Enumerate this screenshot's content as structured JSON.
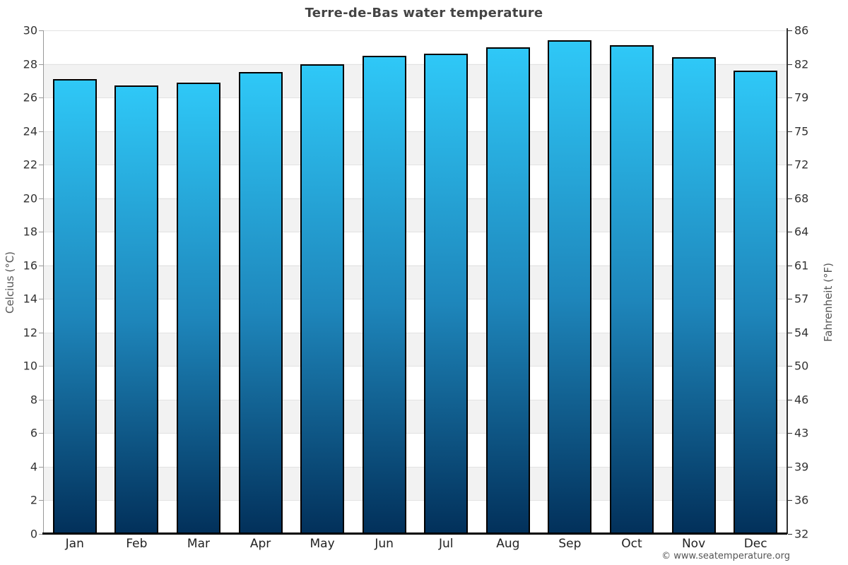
{
  "chart_data": {
    "type": "bar",
    "title": "Terre-de-Bas water temperature",
    "categories": [
      "Jan",
      "Feb",
      "Mar",
      "Apr",
      "May",
      "Jun",
      "Jul",
      "Aug",
      "Sep",
      "Oct",
      "Nov",
      "Dec"
    ],
    "values": [
      27.1,
      26.7,
      26.9,
      27.5,
      28.0,
      28.5,
      28.6,
      29.0,
      29.4,
      29.1,
      28.4,
      27.6
    ],
    "unit": "°C",
    "ylabel_left": "Celcius (°C)",
    "ylabel_right": "Fahrenheit (°F)",
    "ylim": [
      0,
      30
    ],
    "yticks_celsius": [
      30,
      28,
      26,
      24,
      22,
      20,
      18,
      16,
      14,
      12,
      10,
      8,
      6,
      4,
      2,
      0
    ],
    "yticks_fahrenheit": [
      86,
      82,
      79,
      75,
      72,
      68,
      64,
      61,
      57,
      54,
      50,
      46,
      43,
      39,
      36,
      32
    ],
    "grid": "alternating horizontal bands every 2°C, white and light gray",
    "legend": "none",
    "colors": {
      "bar_gradient_top": "#2fc8f7",
      "bar_gradient_mid": "#1e86bb",
      "bar_gradient_bottom": "#02305a",
      "bar_border": "#000000",
      "band_gray": "#f2f2f2",
      "title_text": "#444444",
      "axis_text": "#333333"
    }
  },
  "watermark": "© www.seatemperature.org"
}
